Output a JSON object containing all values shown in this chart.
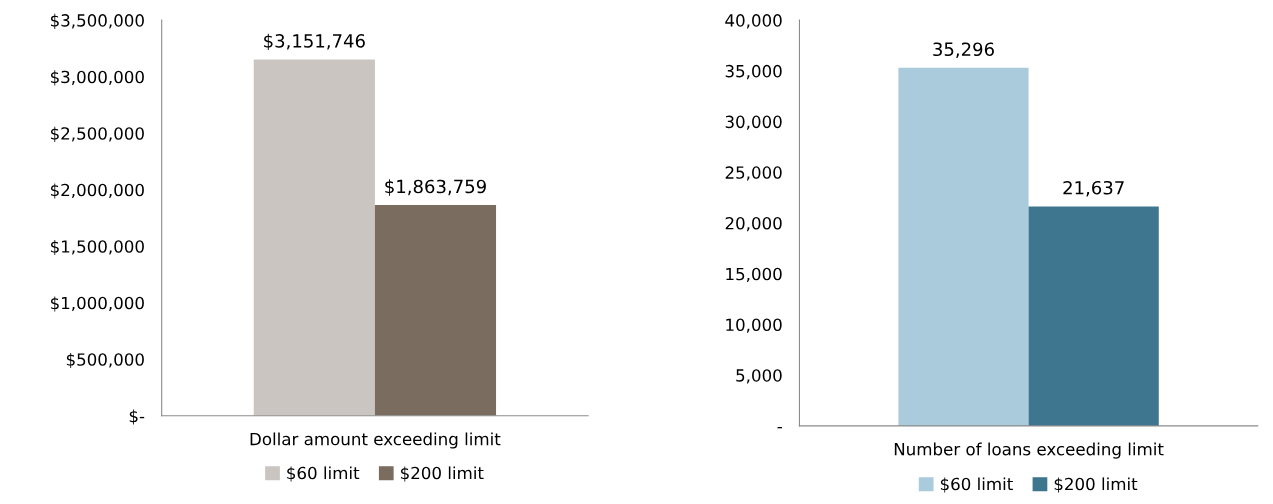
{
  "chart_data": [
    {
      "type": "bar",
      "categories": [
        "Dollar amount exceeding limit"
      ],
      "series": [
        {
          "name": "$60 limit",
          "color": "#cbc5c1",
          "values": [
            3151746
          ],
          "value_labels": [
            "$3,151,746"
          ]
        },
        {
          "name": "$200 limit",
          "color": "#7a6c5f",
          "values": [
            1863759
          ],
          "value_labels": [
            "$1,863,759"
          ]
        }
      ],
      "ylim": [
        0,
        3500000
      ],
      "yticks": [
        {
          "value": 0,
          "label": "$-"
        },
        {
          "value": 500000,
          "label": "$500,000"
        },
        {
          "value": 1000000,
          "label": "$1,000,000"
        },
        {
          "value": 1500000,
          "label": "$1,500,000"
        },
        {
          "value": 2000000,
          "label": "$2,000,000"
        },
        {
          "value": 2500000,
          "label": "$2,500,000"
        },
        {
          "value": 3000000,
          "label": "$3,000,000"
        },
        {
          "value": 3500000,
          "label": "$3,500,000"
        }
      ],
      "grid": false,
      "legend": "bottom"
    },
    {
      "type": "bar",
      "categories": [
        "Number of loans exceeding limit"
      ],
      "series": [
        {
          "name": "$60 limit",
          "color": "#aacbdc",
          "values": [
            35296
          ],
          "value_labels": [
            "35,296"
          ]
        },
        {
          "name": "$200 limit",
          "color": "#3e7690",
          "values": [
            21637
          ],
          "value_labels": [
            "21,637"
          ]
        }
      ],
      "ylim": [
        0,
        40000
      ],
      "yticks": [
        {
          "value": 0,
          "label": "-"
        },
        {
          "value": 5000,
          "label": "5,000"
        },
        {
          "value": 10000,
          "label": "10,000"
        },
        {
          "value": 15000,
          "label": "15,000"
        },
        {
          "value": 20000,
          "label": "20,000"
        },
        {
          "value": 25000,
          "label": "25,000"
        },
        {
          "value": 30000,
          "label": "30,000"
        },
        {
          "value": 35000,
          "label": "35,000"
        },
        {
          "value": 40000,
          "label": "40,000"
        }
      ],
      "grid": false,
      "legend": "bottom"
    }
  ]
}
